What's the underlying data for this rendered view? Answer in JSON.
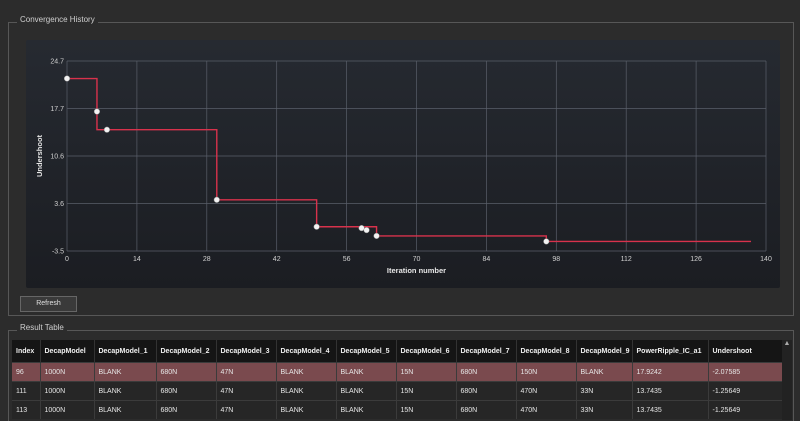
{
  "convergence": {
    "title": "Convergence History"
  },
  "chart_data": {
    "type": "line",
    "xlabel": "Iteration number",
    "ylabel": "Undershoot",
    "x_ticks": [
      "0",
      "14",
      "28",
      "42",
      "56",
      "70",
      "84",
      "98",
      "112",
      "126",
      "140"
    ],
    "y_ticks": [
      "24.7",
      "17.7",
      "10.6",
      "3.6",
      "-3.5"
    ],
    "xlim": [
      0,
      140
    ],
    "ylim": [
      -3.5,
      24.7
    ],
    "grid": true,
    "step_series": {
      "x": [
        0,
        6,
        8,
        30,
        50,
        62,
        96,
        137
      ],
      "y": [
        22.1,
        14.5,
        14.5,
        4.1,
        0.1,
        -1.26,
        -2.08,
        -2.08
      ]
    },
    "markers": {
      "x": [
        0,
        6,
        8,
        30,
        50,
        59,
        60,
        62,
        96
      ],
      "y": [
        22.1,
        17.2,
        14.5,
        4.1,
        0.1,
        -0.1,
        -0.4,
        -1.26,
        -2.08
      ]
    },
    "colors": {
      "line": "#d8324c",
      "marker": "#f2f2f2",
      "grid": "#5a5f6a",
      "text": "#d0d0d0"
    }
  },
  "refresh_label": "Refresh",
  "result": {
    "title": "Result Table",
    "columns": [
      "Index",
      "DecapModel",
      "DecapModel_1",
      "DecapModel_2",
      "DecapModel_3",
      "DecapModel_4",
      "DecapModel_5",
      "DecapModel_6",
      "DecapModel_7",
      "DecapModel_8",
      "DecapModel_9",
      "PowerRipple_IC_a1",
      "Undershoot"
    ],
    "rows": [
      [
        "96",
        "1000N",
        "BLANK",
        "680N",
        "47N",
        "BLANK",
        "BLANK",
        "15N",
        "680N",
        "150N",
        "BLANK",
        "17.9242",
        "-2.07585"
      ],
      [
        "111",
        "1000N",
        "BLANK",
        "680N",
        "47N",
        "BLANK",
        "BLANK",
        "15N",
        "680N",
        "470N",
        "33N",
        "13.7435",
        "-1.25649"
      ],
      [
        "113",
        "1000N",
        "BLANK",
        "680N",
        "47N",
        "BLANK",
        "BLANK",
        "15N",
        "680N",
        "470N",
        "33N",
        "13.7435",
        "-1.25649"
      ]
    ]
  }
}
